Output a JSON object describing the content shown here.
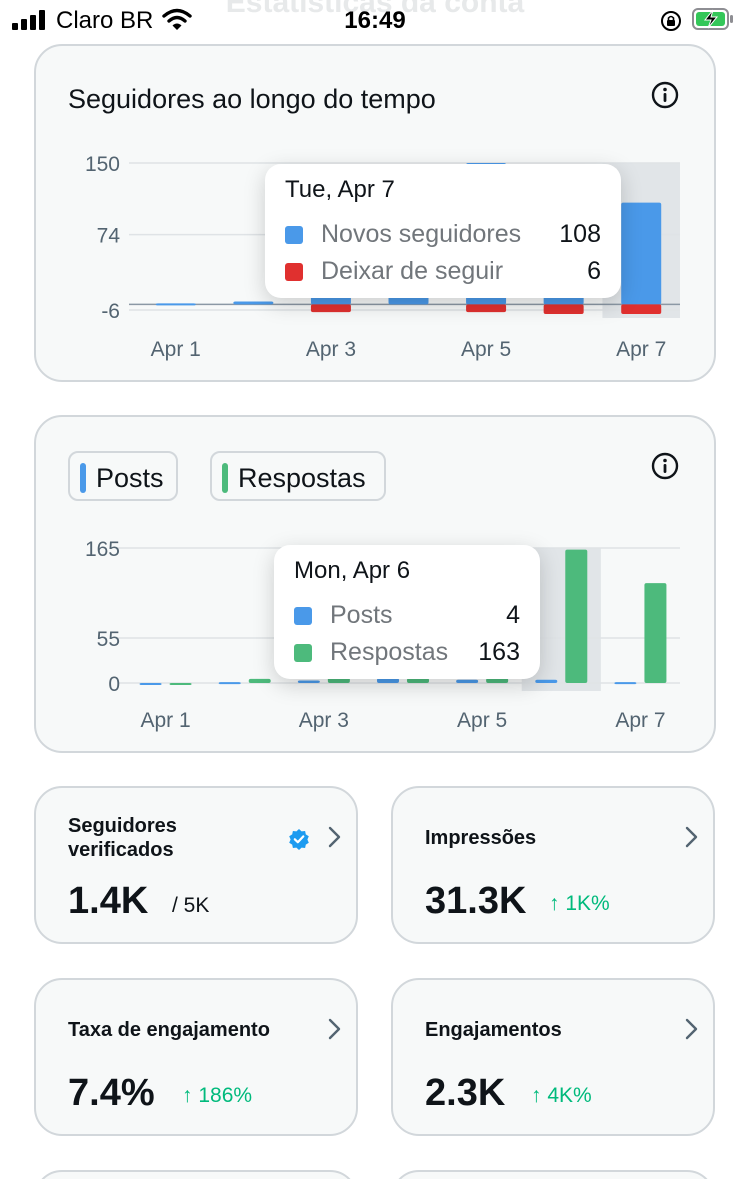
{
  "status_bar": {
    "carrier": "Claro BR",
    "time": "16:49",
    "page_title_behind": "Estatísticas da conta"
  },
  "colors": {
    "blue": "#4a99e9",
    "red": "#e0302f",
    "green": "#4dba7c",
    "card_bg": "#f7f9f9",
    "border": "#d2d7db",
    "delta_green": "#00ba7c"
  },
  "followers_card": {
    "title": "Seguidores ao longo do tempo",
    "tooltip": {
      "date": "Tue, Apr 7",
      "rows": [
        {
          "name": "Novos seguidores",
          "value": "108",
          "color": "#4a99e9"
        },
        {
          "name": "Deixar de seguir",
          "value": "6",
          "color": "#e0302f"
        }
      ]
    }
  },
  "posts_card": {
    "legend": [
      {
        "label": "Posts",
        "color": "#4a99e9"
      },
      {
        "label": "Respostas",
        "color": "#4dba7c"
      }
    ],
    "tooltip": {
      "date": "Mon, Apr 6",
      "rows": [
        {
          "name": "Posts",
          "value": "4",
          "color": "#4a99e9"
        },
        {
          "name": "Respostas",
          "value": "163",
          "color": "#4dba7c"
        }
      ]
    }
  },
  "chart_data": [
    {
      "type": "bar",
      "categories": [
        "Apr 1",
        "Apr 2",
        "Apr 3",
        "Apr 4",
        "Apr 5",
        "Apr 6",
        "Apr 7"
      ],
      "x_tick_labels": [
        "Apr 1",
        "Apr 3",
        "Apr 5",
        "Apr 7"
      ],
      "y_tick_labels": [
        "150",
        "74",
        "-6"
      ],
      "ylim": [
        -6,
        150
      ],
      "highlighted_category": "Apr 7",
      "series": [
        {
          "name": "Novos seguidores",
          "values": [
            1,
            3,
            16,
            12,
            150,
            108,
            108
          ]
        },
        {
          "name": "Deixar de seguir",
          "values": [
            0,
            0,
            4,
            0,
            4,
            6,
            6
          ]
        }
      ]
    },
    {
      "type": "bar",
      "categories": [
        "Apr 1",
        "Apr 2",
        "Apr 3",
        "Apr 4",
        "Apr 5",
        "Apr 6",
        "Apr 7"
      ],
      "x_tick_labels": [
        "Apr 1",
        "Apr 3",
        "Apr 5",
        "Apr 7"
      ],
      "y_tick_labels": [
        "165",
        "55",
        "0"
      ],
      "ylim": [
        0,
        165
      ],
      "highlighted_category": "Apr 6",
      "series": [
        {
          "name": "Posts",
          "values": [
            0,
            1,
            3,
            6,
            4,
            4,
            1
          ]
        },
        {
          "name": "Respostas",
          "values": [
            0,
            5,
            10,
            6,
            6,
            163,
            122
          ]
        }
      ]
    }
  ],
  "metrics": [
    {
      "label": "Seguidores verificados",
      "value": "1.4K",
      "sub": "/ 5K",
      "delta": ""
    },
    {
      "label": "Impressões",
      "value": "31.3K",
      "sub": "",
      "delta": "↑ 1K%"
    },
    {
      "label": "Taxa de engajamento",
      "value": "7.4%",
      "sub": "",
      "delta": "↑ 186%"
    },
    {
      "label": "Engajamentos",
      "value": "2.3K",
      "sub": "",
      "delta": "↑ 4K%"
    }
  ]
}
